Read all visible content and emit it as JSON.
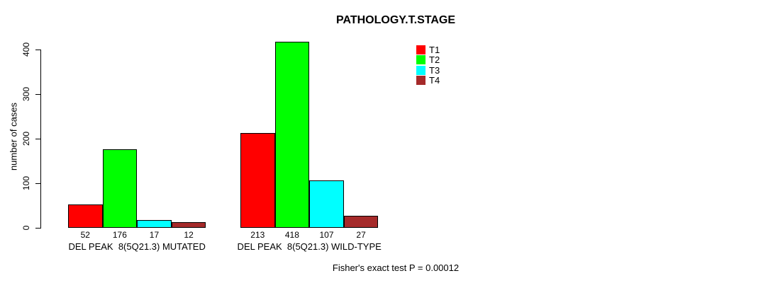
{
  "title": "PATHOLOGY.T.STAGE",
  "footer": "Fisher's exact test P = 0.00012",
  "y_axis": {
    "label": "number of cases",
    "ticks": [
      0,
      100,
      200,
      300,
      400
    ]
  },
  "chart_data": {
    "type": "bar",
    "title": "PATHOLOGY.T.STAGE",
    "xlabel": "",
    "ylabel": "number of cases",
    "ylim": [
      0,
      400
    ],
    "grid": false,
    "legend_position": "top-right",
    "categories": [
      "DEL PEAK  8(5Q21.3) MUTATED",
      "DEL PEAK  8(5Q21.3) WILD-TYPE"
    ],
    "series": [
      {
        "name": "T1",
        "color": "#ff0000",
        "values": [
          52,
          213
        ]
      },
      {
        "name": "T2",
        "color": "#00ff00",
        "values": [
          176,
          418
        ]
      },
      {
        "name": "T3",
        "color": "#00ffff",
        "values": [
          17,
          107
        ]
      },
      {
        "name": "T4",
        "color": "#a52a2a",
        "values": [
          12,
          27
        ]
      }
    ],
    "bar_value_labels": [
      [
        52,
        176,
        17,
        12
      ],
      [
        213,
        418,
        107,
        27
      ]
    ],
    "annotation": "Fisher's exact test P = 0.00012"
  }
}
